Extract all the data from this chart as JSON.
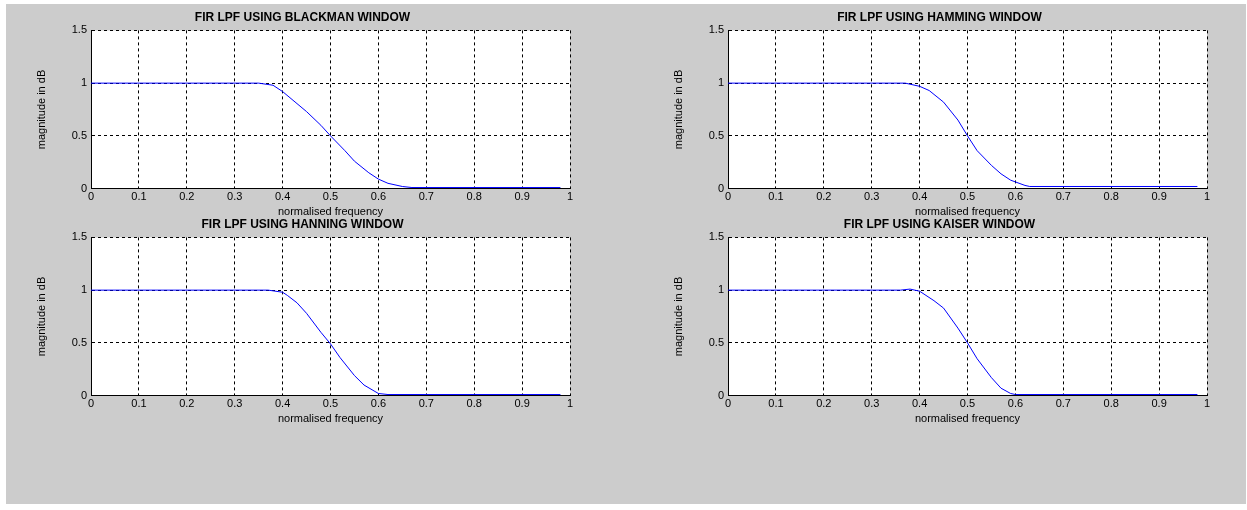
{
  "chart_data": [
    {
      "type": "line",
      "title": "FIR LPF USING BLACKMAN WINDOW",
      "xlabel": "normalised frequency",
      "ylabel": "magnitude in dB",
      "color": "#0000ff",
      "grid": true,
      "xlim": [
        0,
        1
      ],
      "ylim": [
        0,
        1.5
      ],
      "xticks": [
        0,
        0.1,
        0.2,
        0.3,
        0.4,
        0.5,
        0.6,
        0.7,
        0.8,
        0.9,
        1
      ],
      "yticks": [
        0,
        0.5,
        1,
        1.5
      ],
      "x": [
        0,
        0.15,
        0.2,
        0.35,
        0.38,
        0.4,
        0.45,
        0.48,
        0.5,
        0.53,
        0.55,
        0.58,
        0.6,
        0.62,
        0.65,
        0.67,
        0.98
      ],
      "values": [
        1,
        1,
        1,
        1,
        0.98,
        0.92,
        0.73,
        0.6,
        0.5,
        0.36,
        0.26,
        0.15,
        0.09,
        0.05,
        0.02,
        0.01,
        0.01
      ]
    },
    {
      "type": "line",
      "title": "FIR LPF USING HAMMING WINDOW",
      "xlabel": "normalised frequency",
      "ylabel": "magnitude in dB",
      "color": "#0000ff",
      "grid": true,
      "xlim": [
        0,
        1
      ],
      "ylim": [
        0,
        1.5
      ],
      "xticks": [
        0,
        0.1,
        0.2,
        0.3,
        0.4,
        0.5,
        0.6,
        0.7,
        0.8,
        0.9,
        1
      ],
      "yticks": [
        0,
        0.5,
        1,
        1.5
      ],
      "x": [
        0,
        0.3,
        0.37,
        0.4,
        0.42,
        0.45,
        0.48,
        0.5,
        0.52,
        0.55,
        0.57,
        0.59,
        0.62,
        0.63,
        0.98
      ],
      "values": [
        1,
        1,
        1,
        0.97,
        0.93,
        0.82,
        0.65,
        0.5,
        0.36,
        0.22,
        0.14,
        0.08,
        0.03,
        0.02,
        0.02
      ]
    },
    {
      "type": "line",
      "title": "FIR LPF USING HANNING WINDOW",
      "xlabel": "normalised frequency",
      "ylabel": "magnitude in dB",
      "color": "#0000ff",
      "grid": true,
      "xlim": [
        0,
        1
      ],
      "ylim": [
        0,
        1.5
      ],
      "xticks": [
        0,
        0.1,
        0.2,
        0.3,
        0.4,
        0.5,
        0.6,
        0.7,
        0.8,
        0.9,
        1
      ],
      "yticks": [
        0,
        0.5,
        1,
        1.5
      ],
      "x": [
        0,
        0.37,
        0.4,
        0.41,
        0.43,
        0.45,
        0.48,
        0.5,
        0.52,
        0.55,
        0.57,
        0.6,
        0.62,
        0.98
      ],
      "values": [
        1,
        1,
        0.98,
        0.95,
        0.88,
        0.78,
        0.6,
        0.49,
        0.36,
        0.19,
        0.1,
        0.02,
        0.01,
        0.01
      ]
    },
    {
      "type": "line",
      "title": "FIR LPF USING KAISER WINDOW",
      "xlabel": "normalised frequency",
      "ylabel": "magnitude in dB",
      "color": "#0000ff",
      "grid": true,
      "xlim": [
        0,
        1
      ],
      "ylim": [
        0,
        1.5
      ],
      "xticks": [
        0,
        0.1,
        0.2,
        0.3,
        0.4,
        0.5,
        0.6,
        0.7,
        0.8,
        0.9,
        1
      ],
      "yticks": [
        0,
        0.5,
        1,
        1.5
      ],
      "x": [
        0,
        0.36,
        0.38,
        0.4,
        0.43,
        0.45,
        0.48,
        0.5,
        0.52,
        0.55,
        0.57,
        0.59,
        0.6,
        0.98
      ],
      "values": [
        1,
        1,
        1.01,
        0.99,
        0.9,
        0.83,
        0.64,
        0.5,
        0.35,
        0.17,
        0.07,
        0.02,
        0.01,
        0.01
      ]
    }
  ]
}
